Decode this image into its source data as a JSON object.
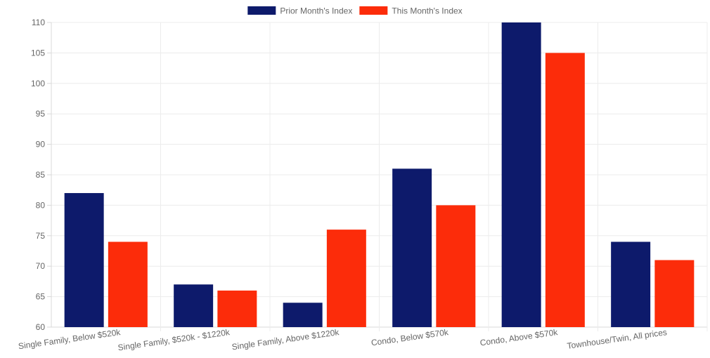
{
  "chart_data": {
    "type": "bar",
    "categories": [
      "Single Family, Below $520k",
      "Single Family, $520k - $1220k",
      "Single Family, Above $1220k",
      "Condo, Below $570k",
      "Condo, Above $570k",
      "Townhouse/Twin, All prices"
    ],
    "series": [
      {
        "name": "Prior Month's Index",
        "color": "#0d1a6b",
        "values": [
          82,
          67,
          64,
          86,
          110,
          74
        ]
      },
      {
        "name": "This Month's Index",
        "color": "#fc2c0a",
        "values": [
          74,
          66,
          76,
          80,
          105,
          71
        ]
      }
    ],
    "ylim": [
      60,
      110
    ],
    "yticks": [
      "60",
      "65",
      "70",
      "75",
      "80",
      "85",
      "90",
      "95",
      "100",
      "105",
      "110"
    ],
    "grid": true,
    "legend_position": "top-center",
    "title": "",
    "xlabel": "",
    "ylabel": ""
  }
}
